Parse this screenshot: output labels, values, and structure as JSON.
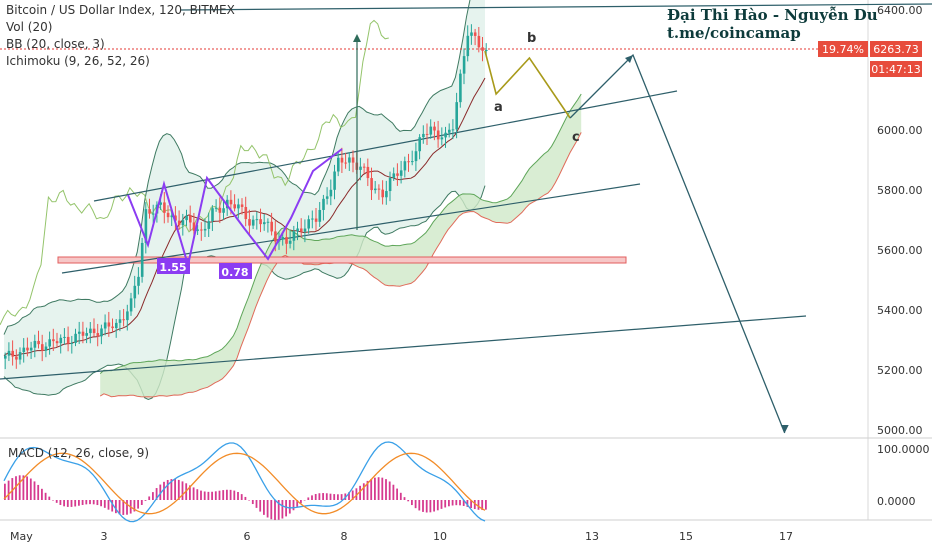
{
  "header": {
    "title": "Bitcoin / US Dollar Index, 120, BITMEX",
    "indicator_vol": "Vol (20)",
    "indicator_bb": "BB (20, close, 3)",
    "indicator_ichimoku": "Ichimoku (9, 26, 52, 26)"
  },
  "watermark": {
    "line1": "Đại Thi Hào - Nguyễn Du",
    "line2": "t.me/coincamap"
  },
  "price_badges": {
    "percent": "19.74%",
    "price": "6263.73",
    "countdown": "01:47:13"
  },
  "annotations": {
    "ratio_left": "1.55",
    "ratio_right": "0.78",
    "wave_a": "a",
    "wave_b": "b",
    "wave_c": "c"
  },
  "macd": {
    "label": "MACD (12, 26, close, 9)",
    "ticks": [
      "100.0000",
      "0.0000"
    ]
  },
  "colors": {
    "candle_up": "#26a69a",
    "candle_down": "#ef5350",
    "bb_line": "#3f7a62",
    "bb_fill": "#e6f3ee",
    "trend_line": "#2e5f6a",
    "pattern": "#8b3cf2",
    "wave_line": "#a89a1a",
    "support_zone": "#f6c7c7",
    "price_line": "#e53935",
    "macd_line": "#3aa0e8",
    "signal_line": "#f28c28",
    "hist": "#d63a8f"
  },
  "chart_data": {
    "type": "candlestick",
    "title": "Bitcoin / US Dollar Index, 120, BITMEX",
    "x_tick_labels": [
      "May",
      "3",
      "6",
      "8",
      "10",
      "13",
      "15",
      "17"
    ],
    "y_tick_labels": [
      "6400.00",
      "6000.00",
      "5800.00",
      "5600.00",
      "5400.00",
      "5200.00",
      "5000.00"
    ],
    "ylim": [
      4980,
      6420
    ],
    "last_price": 6263.73,
    "close_path": [
      [
        0,
        5240
      ],
      [
        8,
        5280
      ],
      [
        16,
        5300
      ],
      [
        24,
        5330
      ],
      [
        30,
        5350
      ],
      [
        34,
        5420
      ],
      [
        36,
        5520
      ],
      [
        38,
        5730
      ],
      [
        42,
        5740
      ],
      [
        46,
        5700
      ],
      [
        50,
        5690
      ],
      [
        53,
        5660
      ],
      [
        56,
        5720
      ],
      [
        60,
        5760
      ],
      [
        63,
        5740
      ],
      [
        66,
        5700
      ],
      [
        70,
        5690
      ],
      [
        73,
        5650
      ],
      [
        76,
        5620
      ],
      [
        80,
        5680
      ],
      [
        84,
        5700
      ],
      [
        86,
        5760
      ],
      [
        88,
        5820
      ],
      [
        90,
        5890
      ],
      [
        93,
        5900
      ],
      [
        96,
        5880
      ],
      [
        99,
        5810
      ],
      [
        102,
        5790
      ],
      [
        105,
        5840
      ],
      [
        108,
        5890
      ],
      [
        111,
        5920
      ],
      [
        113,
        5990
      ],
      [
        115,
        6010
      ],
      [
        117,
        5980
      ],
      [
        119,
        5970
      ],
      [
        121,
        6020
      ],
      [
        123,
        6180
      ],
      [
        125,
        6320
      ],
      [
        127,
        6300
      ],
      [
        129,
        6280
      ],
      [
        130,
        6260
      ]
    ],
    "projection_wave": [
      [
        130,
        6263
      ],
      [
        133,
        6120
      ],
      [
        142,
        6240
      ],
      [
        153,
        6040
      ]
    ],
    "projection_breakout": [
      [
        153,
        6040
      ],
      [
        170,
        6250
      ],
      [
        211,
        4990
      ]
    ]
  }
}
